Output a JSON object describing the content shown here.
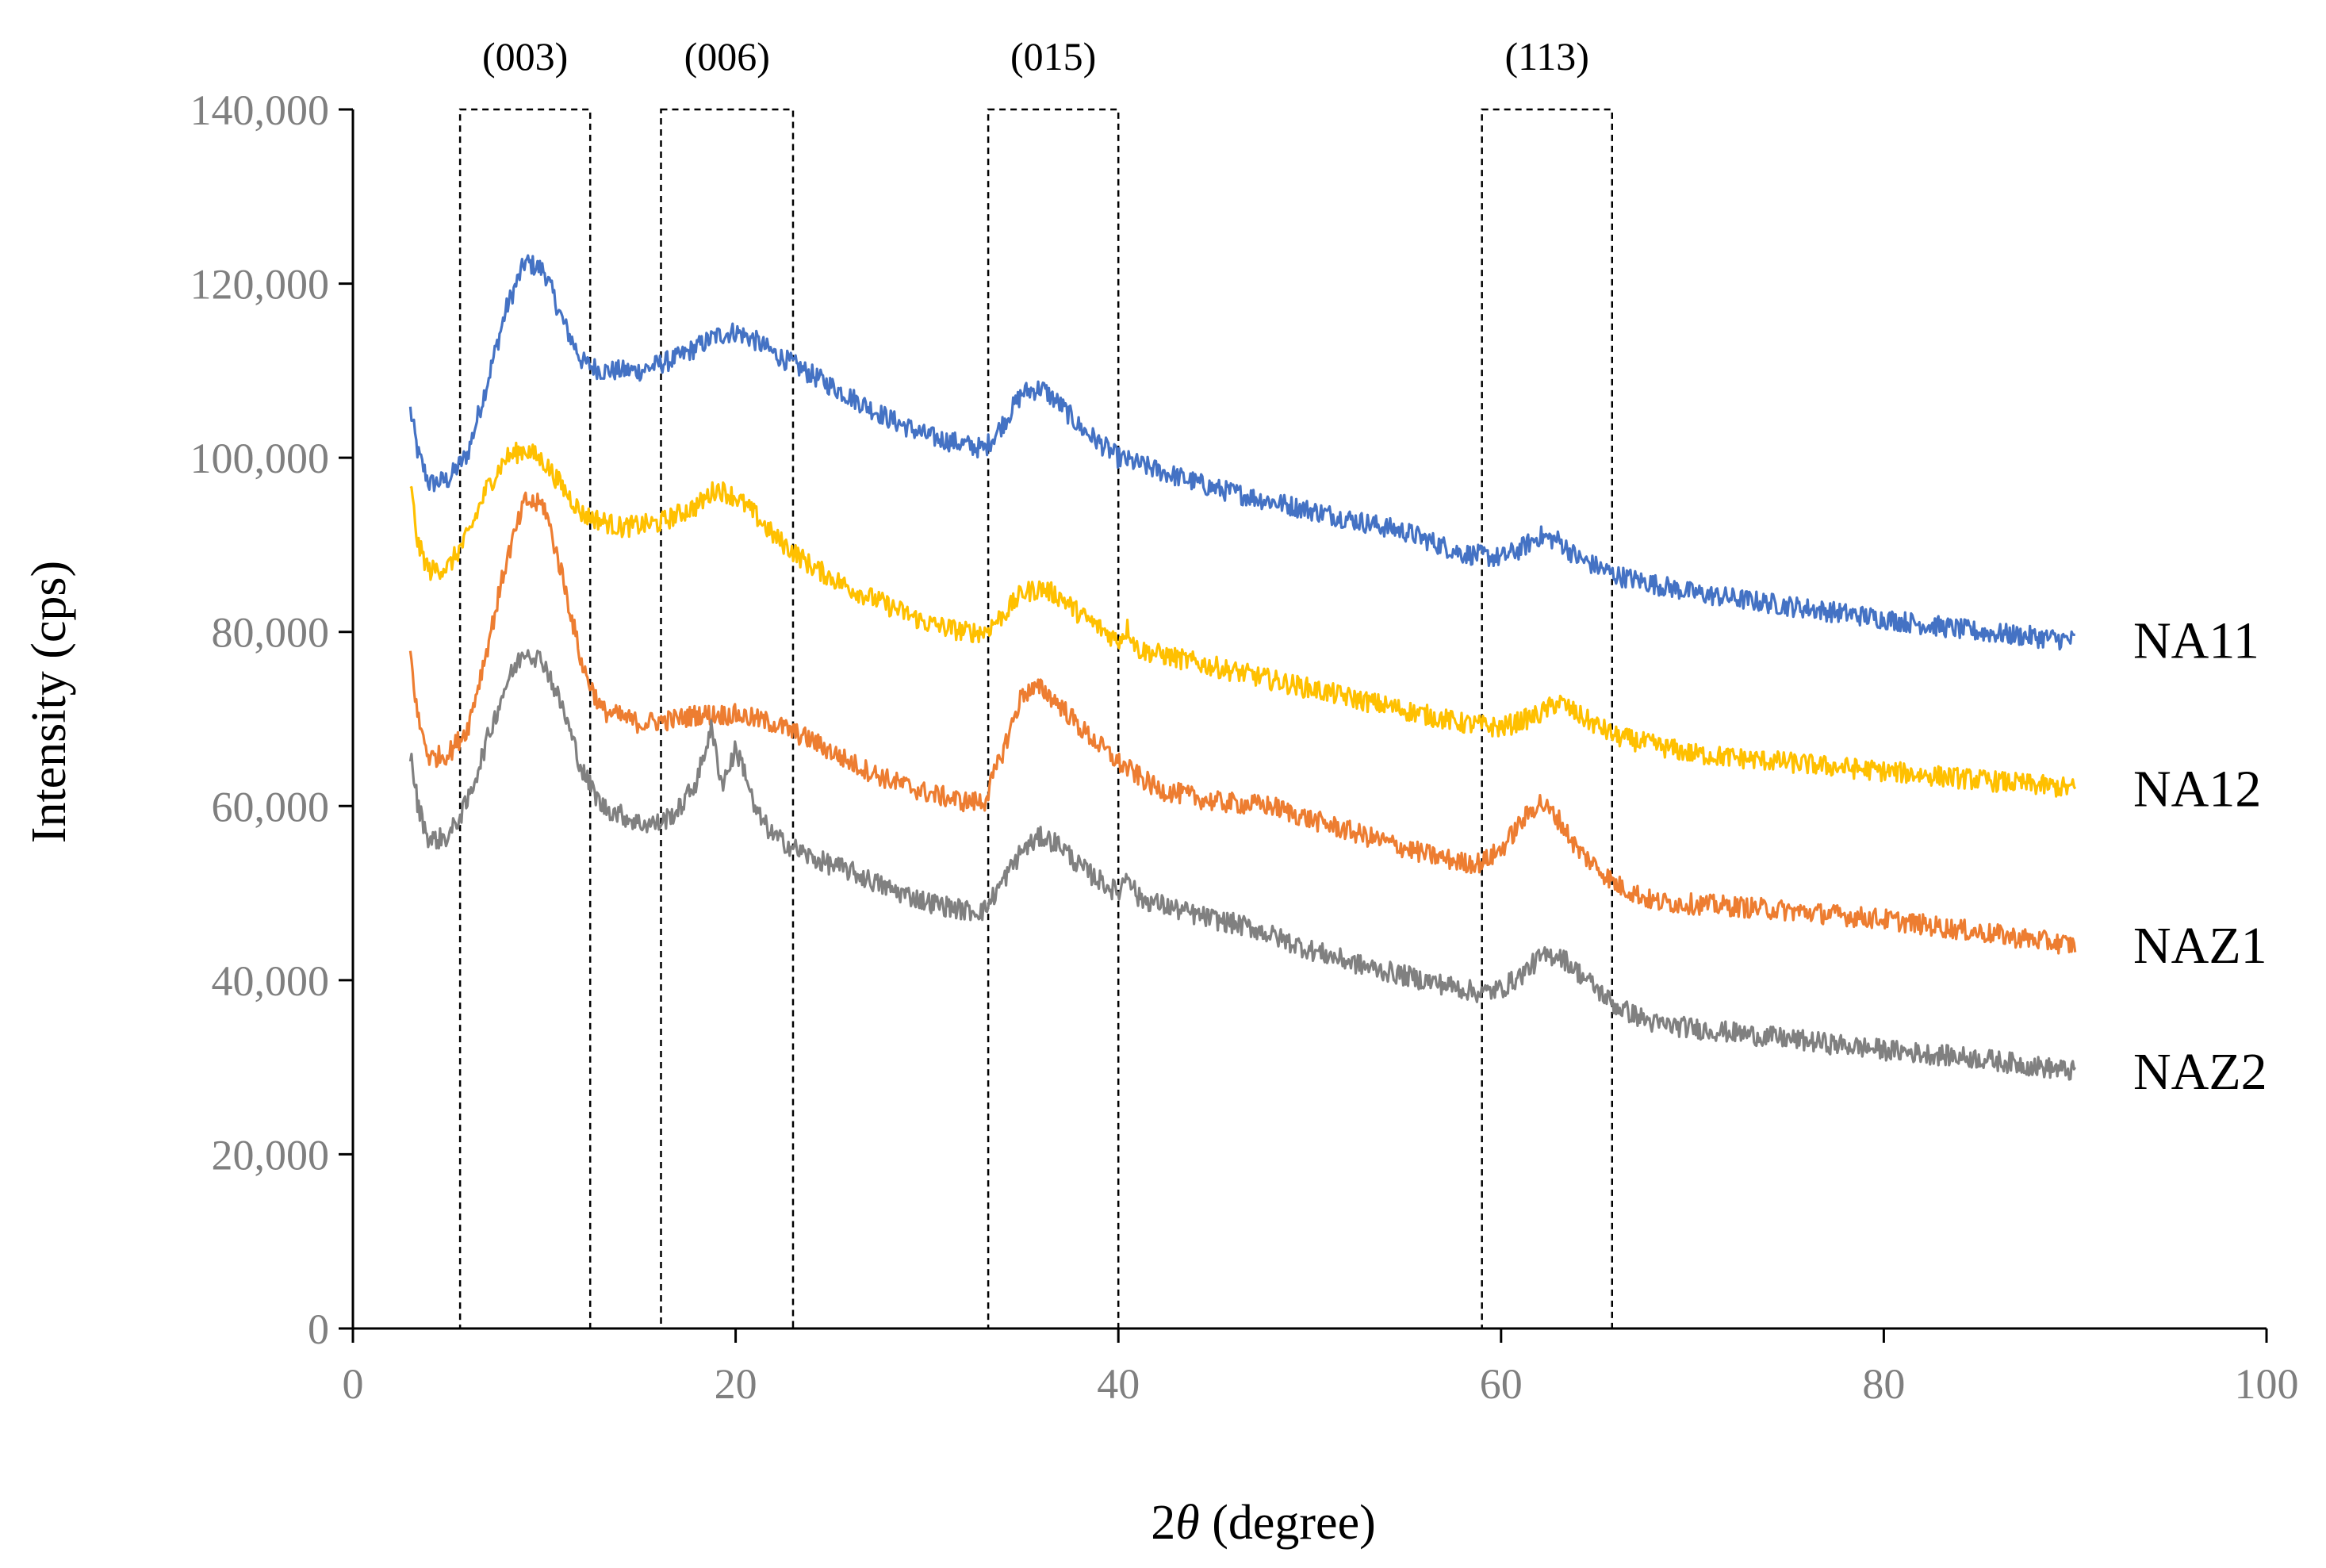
{
  "chart_data": {
    "type": "line",
    "title": "",
    "xlabel_prefix": "2",
    "xlabel_symbol": "θ",
    "xlabel_suffix": " (degree)",
    "ylabel": "Intensity (cps)",
    "xlim": [
      0,
      100
    ],
    "ylim": [
      0,
      140000
    ],
    "x_ticks": [
      0,
      20,
      40,
      60,
      80,
      100
    ],
    "y_ticks": [
      0,
      20000,
      40000,
      60000,
      80000,
      100000,
      120000,
      140000
    ],
    "x_tick_labels": [
      "0",
      "20",
      "40",
      "60",
      "80",
      "100"
    ],
    "y_tick_labels": [
      "0",
      "20,000",
      "40,000",
      "60,000",
      "80,000",
      "100,000",
      "120,000",
      "140,000"
    ],
    "grid": false,
    "peak_regions": [
      {
        "label": "(003)",
        "x_range": [
          5.6,
          12.4
        ]
      },
      {
        "label": "(006)",
        "x_range": [
          16.1,
          23.0
        ]
      },
      {
        "label": "(015)",
        "x_range": [
          33.2,
          40.0
        ]
      },
      {
        "label": "(113)",
        "x_range": [
          59.0,
          65.8
        ]
      }
    ],
    "series": [
      {
        "name": "NA11",
        "color": "#4472c4",
        "points": [
          [
            3,
            105500
          ],
          [
            3.4,
            100500
          ],
          [
            4,
            97000
          ],
          [
            5,
            97500
          ],
          [
            6,
            100500
          ],
          [
            7,
            108500
          ],
          [
            8,
            117000
          ],
          [
            9,
            122500
          ],
          [
            10,
            121500
          ],
          [
            11,
            115500
          ],
          [
            12,
            111000
          ],
          [
            13,
            110000
          ],
          [
            15,
            110000
          ],
          [
            17,
            111500
          ],
          [
            19,
            114000
          ],
          [
            20,
            114500
          ],
          [
            21,
            113500
          ],
          [
            22,
            112000
          ],
          [
            24,
            109500
          ],
          [
            26,
            107000
          ],
          [
            28,
            104500
          ],
          [
            30,
            102500
          ],
          [
            32,
            101500
          ],
          [
            33,
            101000
          ],
          [
            34,
            104000
          ],
          [
            35,
            107500
          ],
          [
            36,
            108000
          ],
          [
            37,
            106000
          ],
          [
            38,
            103500
          ],
          [
            40,
            100000
          ],
          [
            45,
            96500
          ],
          [
            50,
            94000
          ],
          [
            55,
            91500
          ],
          [
            58,
            89000
          ],
          [
            60,
            88500
          ],
          [
            61,
            89500
          ],
          [
            62,
            91000
          ],
          [
            63,
            90500
          ],
          [
            64,
            88500
          ],
          [
            66,
            86500
          ],
          [
            70,
            84500
          ],
          [
            75,
            83000
          ],
          [
            80,
            81500
          ],
          [
            85,
            80000
          ],
          [
            90,
            79000
          ]
        ]
      },
      {
        "name": "NA12",
        "color": "#ffc000",
        "points": [
          [
            3,
            97000
          ],
          [
            3.4,
            90000
          ],
          [
            4,
            87000
          ],
          [
            5,
            87500
          ],
          [
            6,
            91000
          ],
          [
            7,
            96500
          ],
          [
            8,
            100000
          ],
          [
            9,
            101000
          ],
          [
            10,
            99500
          ],
          [
            11,
            96500
          ],
          [
            12,
            93500
          ],
          [
            14,
            92000
          ],
          [
            16,
            92500
          ],
          [
            18,
            94500
          ],
          [
            19,
            96500
          ],
          [
            20,
            95500
          ],
          [
            21,
            93500
          ],
          [
            22,
            91000
          ],
          [
            24,
            87500
          ],
          [
            26,
            85000
          ],
          [
            28,
            83000
          ],
          [
            30,
            81000
          ],
          [
            32,
            80000
          ],
          [
            33,
            80000
          ],
          [
            34,
            82000
          ],
          [
            35,
            84500
          ],
          [
            36,
            85000
          ],
          [
            37,
            84000
          ],
          [
            38,
            82000
          ],
          [
            40,
            79000
          ],
          [
            40.5,
            80500
          ],
          [
            41,
            78000
          ],
          [
            45,
            76000
          ],
          [
            50,
            73500
          ],
          [
            55,
            71000
          ],
          [
            58,
            69500
          ],
          [
            60,
            69000
          ],
          [
            62,
            70500
          ],
          [
            63,
            72000
          ],
          [
            64,
            70500
          ],
          [
            66,
            68000
          ],
          [
            70,
            66000
          ],
          [
            75,
            65000
          ],
          [
            80,
            64000
          ],
          [
            85,
            63000
          ],
          [
            90,
            62000
          ]
        ]
      },
      {
        "name": "NAZ1",
        "color": "#ed7d31",
        "points": [
          [
            3,
            77500
          ],
          [
            3.4,
            70000
          ],
          [
            4,
            65500
          ],
          [
            5,
            66000
          ],
          [
            6,
            69000
          ],
          [
            7,
            78000
          ],
          [
            8,
            88000
          ],
          [
            9,
            95000
          ],
          [
            10,
            94500
          ],
          [
            11,
            86000
          ],
          [
            12,
            76000
          ],
          [
            13,
            71000
          ],
          [
            15,
            69500
          ],
          [
            17,
            70000
          ],
          [
            18,
            70500
          ],
          [
            20,
            70500
          ],
          [
            22,
            69500
          ],
          [
            24,
            67500
          ],
          [
            26,
            65000
          ],
          [
            28,
            63000
          ],
          [
            30,
            61500
          ],
          [
            32,
            60500
          ],
          [
            33,
            60500
          ],
          [
            34,
            66500
          ],
          [
            35,
            73000
          ],
          [
            36,
            73500
          ],
          [
            37,
            71500
          ],
          [
            38,
            69000
          ],
          [
            40,
            65000
          ],
          [
            42,
            62000
          ],
          [
            45,
            60500
          ],
          [
            48,
            60000
          ],
          [
            50,
            58500
          ],
          [
            53,
            56500
          ],
          [
            56,
            54500
          ],
          [
            58,
            53500
          ],
          [
            59,
            53500
          ],
          [
            60,
            55000
          ],
          [
            61,
            58000
          ],
          [
            62,
            60500
          ],
          [
            63,
            58500
          ],
          [
            64,
            55000
          ],
          [
            66,
            51000
          ],
          [
            68,
            49000
          ],
          [
            72,
            48500
          ],
          [
            75,
            48000
          ],
          [
            80,
            47000
          ],
          [
            85,
            45500
          ],
          [
            90,
            44000
          ]
        ]
      },
      {
        "name": "NAZ2",
        "color": "#808080",
        "points": [
          [
            3,
            66000
          ],
          [
            3.4,
            60000
          ],
          [
            4,
            56000
          ],
          [
            5,
            56500
          ],
          [
            6,
            60500
          ],
          [
            7,
            67500
          ],
          [
            8,
            74000
          ],
          [
            9,
            78000
          ],
          [
            10,
            76500
          ],
          [
            11,
            71000
          ],
          [
            12,
            64000
          ],
          [
            13,
            60000
          ],
          [
            15,
            58000
          ],
          [
            16,
            58000
          ],
          [
            17,
            59500
          ],
          [
            18,
            63000
          ],
          [
            18.7,
            69000
          ],
          [
            19.3,
            62500
          ],
          [
            20,
            66500
          ],
          [
            20.5,
            64000
          ],
          [
            21,
            59500
          ],
          [
            22,
            56500
          ],
          [
            24,
            54000
          ],
          [
            26,
            52500
          ],
          [
            28,
            50500
          ],
          [
            30,
            49000
          ],
          [
            32,
            48000
          ],
          [
            33,
            48000
          ],
          [
            34,
            51500
          ],
          [
            35,
            55000
          ],
          [
            36,
            56500
          ],
          [
            37,
            55500
          ],
          [
            38,
            53000
          ],
          [
            40,
            50000
          ],
          [
            40.5,
            52500
          ],
          [
            41,
            49500
          ],
          [
            44,
            47500
          ],
          [
            47,
            46000
          ],
          [
            50,
            43500
          ],
          [
            53,
            41500
          ],
          [
            56,
            40000
          ],
          [
            59,
            38500
          ],
          [
            60,
            39000
          ],
          [
            61,
            40500
          ],
          [
            62,
            42500
          ],
          [
            63,
            43000
          ],
          [
            64,
            41000
          ],
          [
            66,
            37000
          ],
          [
            68,
            35000
          ],
          [
            72,
            34000
          ],
          [
            76,
            33000
          ],
          [
            80,
            32000
          ],
          [
            85,
            31000
          ],
          [
            90,
            29500
          ]
        ]
      }
    ]
  }
}
